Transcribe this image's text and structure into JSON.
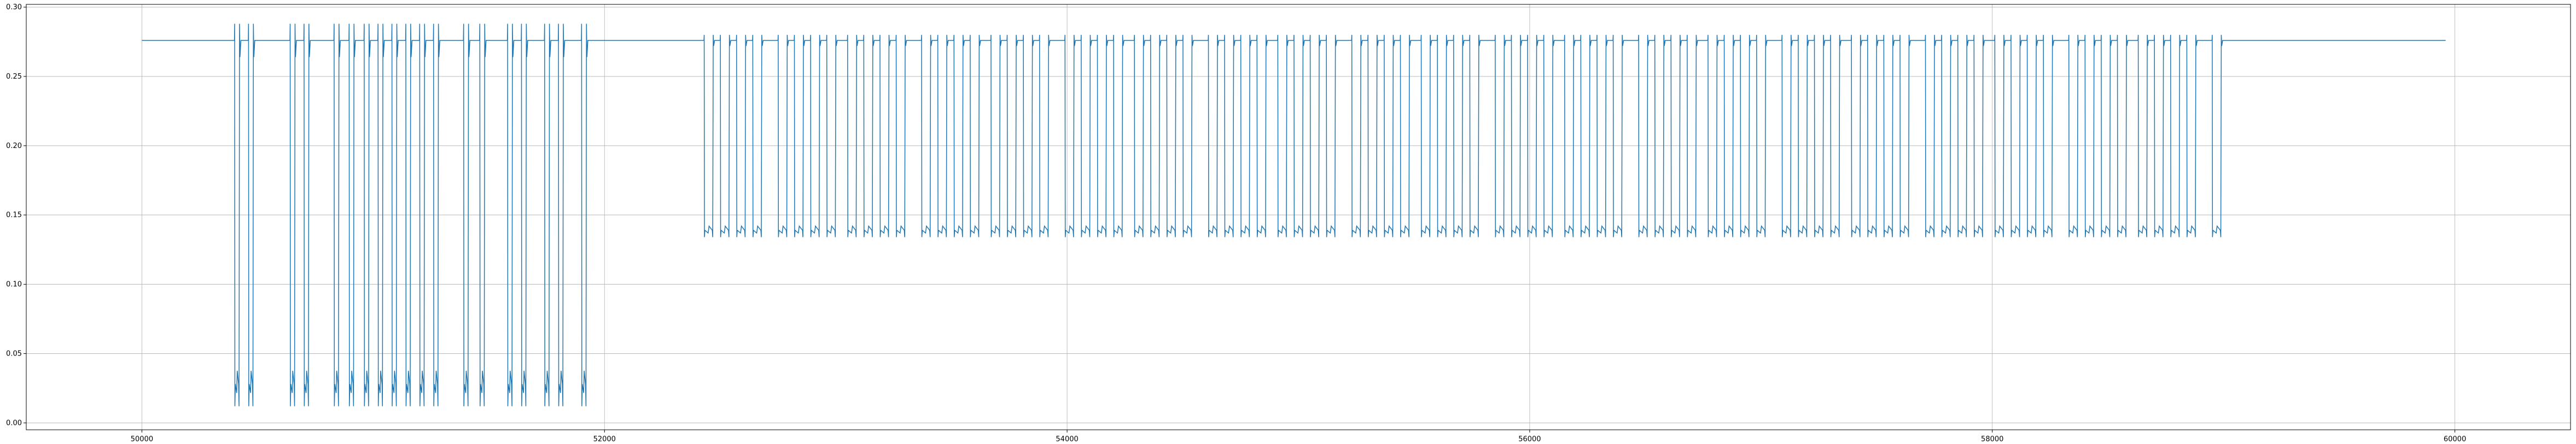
{
  "chart_data": {
    "type": "line",
    "title": "",
    "xlabel": "",
    "ylabel": "",
    "xlim": [
      49500,
      60500
    ],
    "ylim": [
      -0.005,
      0.302
    ],
    "grid": true,
    "line_color": "#1f77b4",
    "x_ticks": [
      50000,
      52000,
      54000,
      56000,
      58000,
      60000
    ],
    "x_tick_labels": [
      "50000",
      "52000",
      "54000",
      "56000",
      "58000",
      "60000"
    ],
    "y_ticks": [
      0.0,
      0.05,
      0.1,
      0.15,
      0.2,
      0.25,
      0.3
    ],
    "y_tick_labels": [
      "0.00",
      "0.05",
      "0.10",
      "0.15",
      "0.20",
      "0.25",
      "0.30"
    ],
    "series": [
      {
        "baseline": 0.276,
        "segments": [
          {
            "x_start": 50000,
            "x_end": 50400,
            "level": 0.276,
            "kind": "flat"
          },
          {
            "x_start": 50400,
            "x_end": 51930,
            "kind": "pulse-train",
            "high": 0.276,
            "low": 0.028,
            "peak": 0.288,
            "trough": 0.012,
            "low_pulse_width": 22,
            "pulse_starts": [
              50400,
              50460,
              50640,
              50700,
              50830,
              50895,
              50960,
              51020,
              51080,
              51140,
              51200,
              51260,
              51390,
              51460,
              51580,
              51640,
              51740,
              51800,
              51900
            ]
          },
          {
            "x_start": 51930,
            "x_end": 52430,
            "level": 0.276,
            "kind": "flat"
          },
          {
            "x_start": 52430,
            "x_end": 59060,
            "kind": "pulse-train",
            "high": 0.276,
            "low": 0.139,
            "peak": 0.28,
            "trough": 0.134,
            "low_pulse_width": 40,
            "period_pattern": [
              70,
              70,
              70,
              110,
              70,
              70,
              70,
              90
            ]
          },
          {
            "x_start": 59060,
            "x_end": 59960,
            "level": 0.276,
            "kind": "flat"
          }
        ]
      }
    ]
  }
}
